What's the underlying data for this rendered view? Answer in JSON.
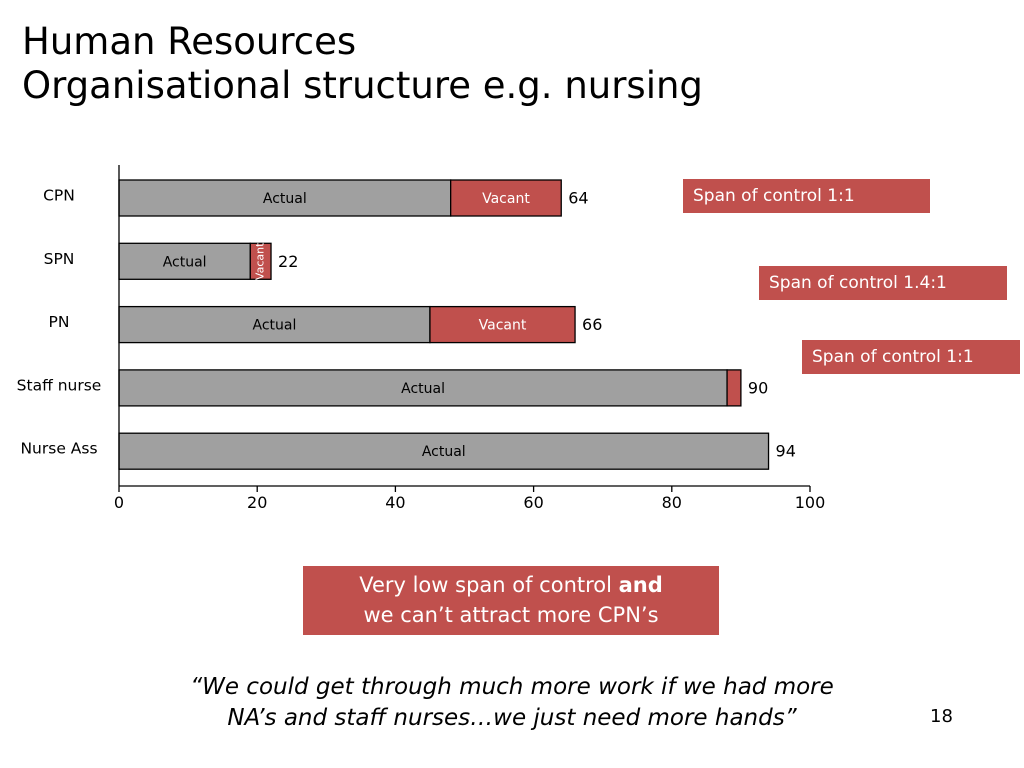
{
  "slide": {
    "title_line1": "Human Resources",
    "title_line2": "Organisational structure e.g. nursing",
    "page_number": "18"
  },
  "callouts": [
    {
      "text": "Span of control 1:1"
    },
    {
      "text": "Span of control 1.4:1"
    },
    {
      "text": "Span of control 1:1"
    }
  ],
  "conclusion": {
    "line1_before": "Very low span of control ",
    "line1_bold": "and",
    "line2": "we can’t attract more CPN’s"
  },
  "quote": {
    "line1": "“We could get through much more work if we had more",
    "line2": "NA’s and staff nurses…we just need more hands”"
  },
  "colors": {
    "actual": "#a0a0a0",
    "vacant": "#c0504d",
    "accent": "#c0504d"
  },
  "chart_data": {
    "type": "bar",
    "orientation": "horizontal",
    "stacked": true,
    "categories": [
      "CPN",
      "SPN",
      "PN",
      "Staff nurse",
      "Nurse Ass"
    ],
    "series": [
      {
        "name": "Actual",
        "values": [
          48,
          19,
          45,
          88,
          94
        ]
      },
      {
        "name": "Vacant",
        "values": [
          16,
          3,
          21,
          2,
          0
        ]
      }
    ],
    "segment_labels": {
      "actual": [
        "Actual",
        "Actual",
        "Actual",
        "Actual",
        "Actual"
      ],
      "vacant": [
        "Vacant",
        "Vacant",
        "Vacant",
        "",
        ""
      ]
    },
    "totals": [
      64,
      22,
      66,
      90,
      94
    ],
    "xlim": [
      0,
      100
    ],
    "xticks": [
      0,
      20,
      40,
      60,
      80,
      100
    ],
    "grid": false,
    "legend": "none"
  }
}
